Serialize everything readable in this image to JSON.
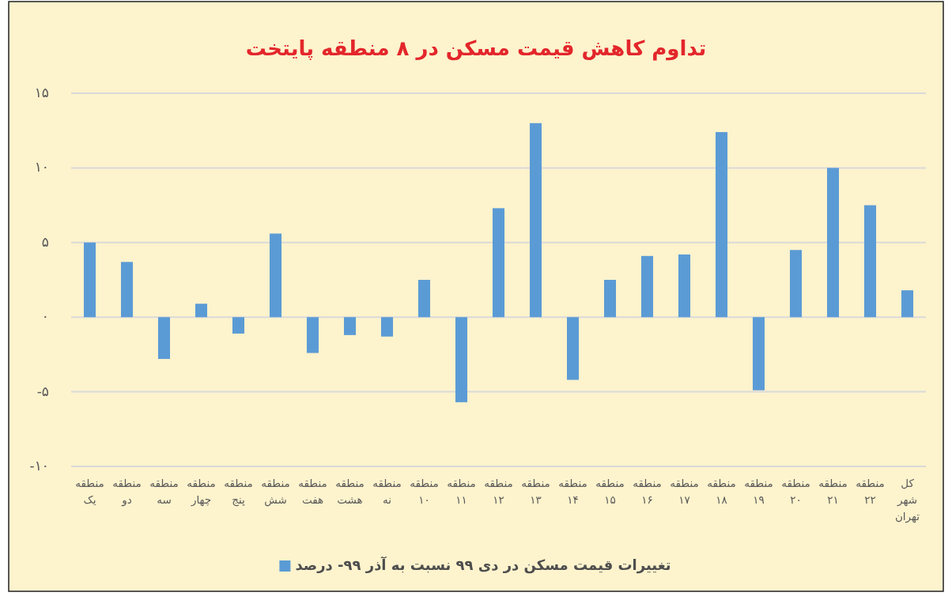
{
  "chart_data": {
    "type": "bar",
    "title": "تداوم کاهش قیمت مسکن در ۸ منطقه پایتخت",
    "categories": [
      "منطقه یک",
      "منطقه دو",
      "منطقه سه",
      "منطقه چهار",
      "منطقه پنج",
      "منطقه شش",
      "منطقه هفت",
      "منطقه هشت",
      "منطقه نه",
      "منطقه ۱۰",
      "منطقه ۱۱",
      "منطقه ۱۲",
      "منطقه ۱۳",
      "منطقه ۱۴",
      "منطقه ۱۵",
      "منطقه ۱۶",
      "منطقه ۱۷",
      "منطقه ۱۸",
      "منطقه ۱۹",
      "منطقه ۲۰",
      "منطقه ۲۱",
      "منطقه ۲۲",
      "کل شهر تهران"
    ],
    "series": [
      {
        "name": "تغییرات قیمت مسکن در دی ۹۹ نسبت به آذر ۹۹- درصد",
        "color": "#5b9bd5",
        "values": [
          5.0,
          3.7,
          -2.8,
          0.9,
          -1.1,
          5.6,
          -2.4,
          -1.2,
          -1.3,
          2.5,
          -5.7,
          7.3,
          13.0,
          -4.2,
          2.5,
          4.1,
          4.2,
          12.4,
          -4.9,
          4.5,
          10.0,
          7.5,
          1.8
        ]
      }
    ],
    "ylim": [
      -10,
      15
    ],
    "yticks": [
      {
        "value": -10,
        "label": "-۱۰"
      },
      {
        "value": -5,
        "label": "-۵"
      },
      {
        "value": 0,
        "label": "۰"
      },
      {
        "value": 5,
        "label": "۵"
      },
      {
        "value": 10,
        "label": "۱۰"
      },
      {
        "value": 15,
        "label": "۱۵"
      }
    ],
    "grid": "y",
    "legend": "bottom"
  }
}
